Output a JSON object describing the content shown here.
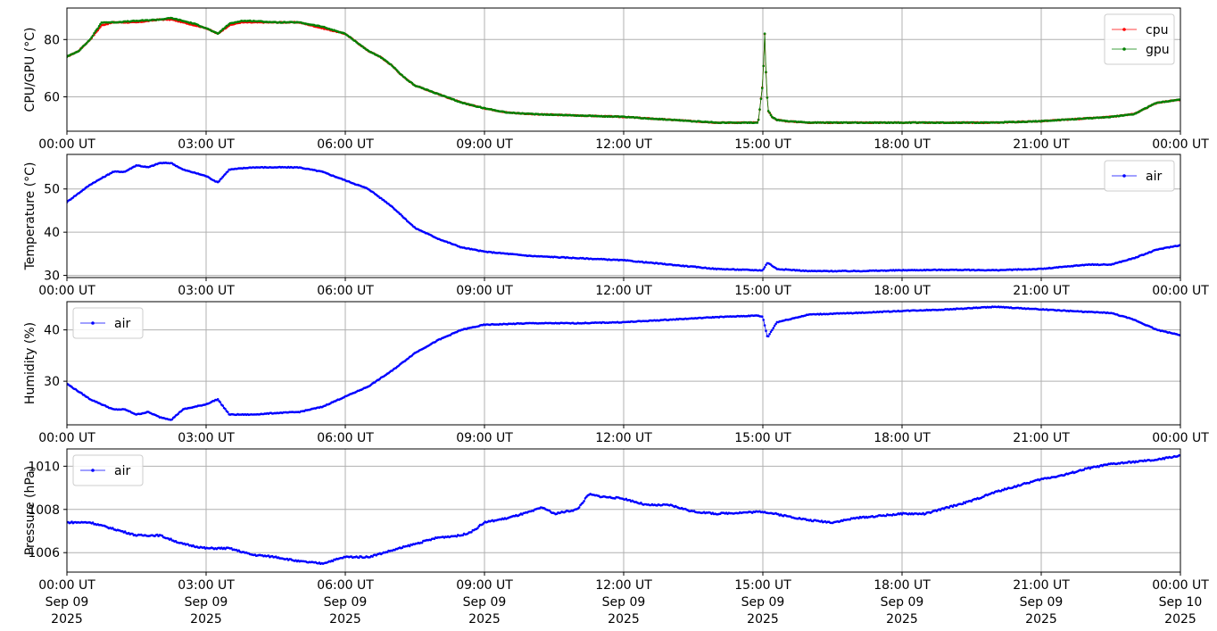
{
  "chart_data": [
    {
      "type": "line",
      "ylabel": "CPU/GPU (°C)",
      "xlim": [
        "2025-09-09 00:00",
        "2025-09-10 00:00"
      ],
      "ylim": [
        48,
        91
      ],
      "yticks": [
        60,
        80
      ],
      "xtick_labels": [
        "00:00 UT",
        "03:00 UT",
        "06:00 UT",
        "09:00 UT",
        "12:00 UT",
        "15:00 UT",
        "18:00 UT",
        "21:00 UT",
        "00:00 UT"
      ],
      "grid": true,
      "legend_position": "upper right",
      "series": [
        {
          "name": "cpu",
          "color": "#ff0000",
          "x_hours": [
            0,
            0.25,
            0.5,
            0.75,
            1,
            1.5,
            2,
            2.25,
            2.5,
            2.75,
            3,
            3.25,
            3.5,
            3.75,
            4,
            4.5,
            5,
            5.5,
            6,
            6.25,
            6.5,
            6.75,
            7,
            7.25,
            7.5,
            8,
            8.5,
            9,
            9.5,
            10,
            11,
            12,
            13,
            14,
            14.9,
            15.0,
            15.04,
            15.08,
            15.12,
            15.2,
            15.3,
            15.5,
            16,
            17,
            18,
            19,
            20,
            21,
            22,
            22.5,
            23,
            23.5,
            24
          ],
          "values": [
            74,
            76,
            80,
            85,
            86,
            86,
            87,
            87,
            86,
            85,
            84,
            82,
            85,
            86,
            86,
            86,
            86,
            84,
            82,
            79,
            76,
            74,
            71,
            67,
            64,
            61,
            58,
            56,
            54.5,
            54,
            53.5,
            53,
            52,
            51,
            51,
            65,
            82,
            62,
            55,
            53,
            52,
            51.5,
            51,
            51,
            51,
            51,
            51,
            51.5,
            52.5,
            53,
            54,
            58,
            59
          ]
        },
        {
          "name": "gpu",
          "color": "#008000",
          "x_hours": [
            0,
            0.25,
            0.5,
            0.75,
            1,
            1.5,
            2,
            2.25,
            2.5,
            2.75,
            3,
            3.25,
            3.5,
            3.75,
            4,
            4.5,
            5,
            5.5,
            6,
            6.25,
            6.5,
            6.75,
            7,
            7.25,
            7.5,
            8,
            8.5,
            9,
            9.5,
            10,
            11,
            12,
            13,
            14,
            14.9,
            15.0,
            15.04,
            15.08,
            15.12,
            15.2,
            15.3,
            15.5,
            16,
            17,
            18,
            19,
            20,
            21,
            22,
            22.5,
            23,
            23.5,
            24
          ],
          "values": [
            74,
            76,
            80,
            86,
            86,
            86.5,
            87,
            87.5,
            86.5,
            85.5,
            84,
            82,
            85.5,
            86.5,
            86.5,
            86,
            86,
            84.5,
            82,
            79,
            76,
            74,
            71,
            67,
            64,
            61,
            58,
            56,
            54.5,
            54,
            53.5,
            53,
            52,
            51,
            51,
            65,
            82,
            62,
            55,
            53,
            52,
            51.5,
            51,
            51,
            51,
            51,
            51,
            51.5,
            52.5,
            53,
            54,
            58,
            59
          ]
        }
      ]
    },
    {
      "type": "line",
      "ylabel": "Temperature (°C)",
      "xlim": [
        "2025-09-09 00:00",
        "2025-09-10 00:00"
      ],
      "ylim": [
        29.5,
        58
      ],
      "yticks": [
        30,
        40,
        50
      ],
      "xtick_labels": [
        "00:00 UT",
        "03:00 UT",
        "06:00 UT",
        "09:00 UT",
        "12:00 UT",
        "15:00 UT",
        "18:00 UT",
        "21:00 UT",
        "00:00 UT"
      ],
      "grid": true,
      "legend_position": "upper right",
      "series": [
        {
          "name": "air",
          "color": "#0000ff",
          "x_hours": [
            0,
            0.5,
            1,
            1.25,
            1.5,
            1.75,
            2,
            2.25,
            2.5,
            3,
            3.25,
            3.5,
            4,
            4.5,
            5,
            5.5,
            6,
            6.5,
            7,
            7.5,
            8,
            8.5,
            9,
            10,
            11,
            12,
            13,
            14,
            14.9,
            15.0,
            15.1,
            15.3,
            16,
            17,
            18,
            19,
            20,
            21,
            22,
            22.5,
            23,
            23.5,
            24
          ],
          "values": [
            47,
            51,
            54,
            54,
            55.5,
            55,
            56,
            56,
            54.5,
            53,
            51.5,
            54.5,
            55,
            55,
            55,
            54,
            52,
            50,
            46,
            41,
            38.5,
            36.5,
            35.5,
            34.5,
            34,
            33.5,
            32.5,
            31.5,
            31.2,
            31.2,
            33,
            31.5,
            31,
            31,
            31.2,
            31.3,
            31.2,
            31.5,
            32.5,
            32.5,
            34,
            36,
            37
          ]
        }
      ]
    },
    {
      "type": "line",
      "ylabel": "Humidity (%)",
      "xlim": [
        "2025-09-09 00:00",
        "2025-09-10 00:00"
      ],
      "ylim": [
        21.5,
        45.5
      ],
      "yticks": [
        30,
        40
      ],
      "xtick_labels": [
        "00:00 UT",
        "03:00 UT",
        "06:00 UT",
        "09:00 UT",
        "12:00 UT",
        "15:00 UT",
        "18:00 UT",
        "21:00 UT",
        "00:00 UT"
      ],
      "grid": true,
      "legend_position": "upper left",
      "series": [
        {
          "name": "air",
          "color": "#0000ff",
          "x_hours": [
            0,
            0.5,
            1,
            1.25,
            1.5,
            1.75,
            2,
            2.25,
            2.5,
            3,
            3.25,
            3.5,
            4,
            4.5,
            5,
            5.5,
            6,
            6.5,
            7,
            7.5,
            8,
            8.5,
            9,
            10,
            11,
            12,
            13,
            14,
            14.9,
            15.0,
            15.1,
            15.3,
            16,
            17,
            18,
            19,
            20,
            21,
            22,
            22.5,
            23,
            23.5,
            24
          ],
          "values": [
            29.5,
            26.5,
            24.5,
            24.5,
            23.5,
            24,
            23,
            22.5,
            24.5,
            25.5,
            26.5,
            23.5,
            23.5,
            23.8,
            24,
            25,
            27,
            29,
            32,
            35.5,
            38,
            40,
            41,
            41.3,
            41.3,
            41.5,
            42,
            42.5,
            42.8,
            42.5,
            38.5,
            41.5,
            43,
            43.3,
            43.7,
            44,
            44.5,
            44,
            43.5,
            43.3,
            42,
            40,
            39
          ]
        }
      ]
    },
    {
      "type": "line",
      "ylabel": "Pressure (hPa)",
      "xlim": [
        "2025-09-09 00:00",
        "2025-09-10 00:00"
      ],
      "ylim": [
        1005.1,
        1010.8
      ],
      "yticks": [
        1006,
        1008,
        1010
      ],
      "xtick_labels": [
        "00:00 UT\nSep 09\n2025",
        "03:00 UT\nSep 09\n2025",
        "06:00 UT\nSep 09\n2025",
        "09:00 UT\nSep 09\n2025",
        "12:00 UT\nSep 09\n2025",
        "15:00 UT\nSep 09\n2025",
        "18:00 UT\nSep 09\n2025",
        "21:00 UT\nSep 09\n2025",
        "00:00 UT\nSep 10\n2025"
      ],
      "grid": true,
      "legend_position": "upper left",
      "series": [
        {
          "name": "air",
          "color": "#0000ff",
          "x_hours": [
            0,
            0.5,
            1,
            1.5,
            2,
            2.5,
            3,
            3.5,
            4,
            4.5,
            5,
            5.5,
            6,
            6.5,
            7,
            7.5,
            8,
            8.5,
            8.75,
            9,
            9.5,
            10,
            10.25,
            10.5,
            11,
            11.25,
            11.5,
            12,
            12.5,
            13,
            13.5,
            14,
            15,
            15.5,
            16,
            16.5,
            17,
            17.5,
            18,
            18.5,
            19,
            19.5,
            20,
            20.5,
            21,
            21.5,
            22,
            22.5,
            23,
            23.5,
            24
          ],
          "values": [
            1007.4,
            1007.4,
            1007.1,
            1006.8,
            1006.8,
            1006.4,
            1006.2,
            1006.2,
            1005.9,
            1005.8,
            1005.6,
            1005.5,
            1005.8,
            1005.8,
            1006.1,
            1006.4,
            1006.7,
            1006.8,
            1007,
            1007.4,
            1007.6,
            1007.9,
            1008.1,
            1007.8,
            1008,
            1008.7,
            1008.6,
            1008.5,
            1008.2,
            1008.2,
            1007.9,
            1007.8,
            1007.9,
            1007.7,
            1007.5,
            1007.4,
            1007.6,
            1007.7,
            1007.8,
            1007.8,
            1008.1,
            1008.4,
            1008.8,
            1009.1,
            1009.4,
            1009.6,
            1009.9,
            1010.1,
            1010.2,
            1010.3,
            1010.5
          ]
        }
      ]
    }
  ]
}
